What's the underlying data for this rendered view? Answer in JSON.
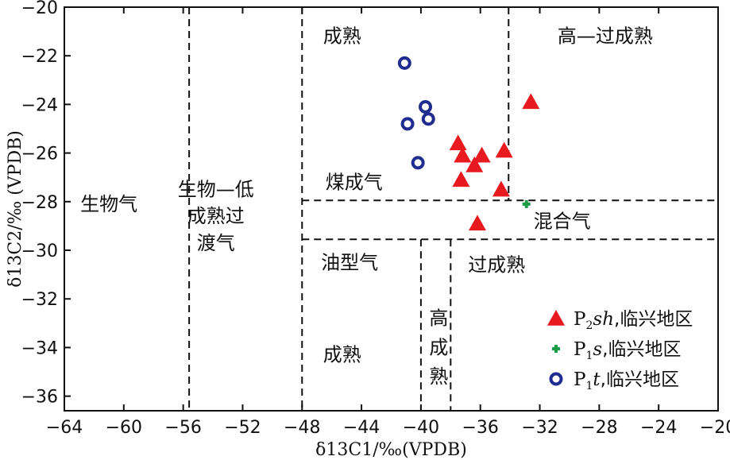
{
  "chart_data": {
    "type": "scatter",
    "title": "",
    "xlabel": "δ13C1/‰(VPDB)",
    "ylabel": "δ13C2/‰ (VPDB)",
    "xlim": [
      -64,
      -20
    ],
    "ylim": [
      -36.6,
      -20
    ],
    "x_ticks": [
      -64,
      -60,
      -56,
      -52,
      -48,
      -44,
      -40,
      -36,
      -32,
      -28,
      -24,
      -20
    ],
    "y_ticks": [
      -20,
      -22,
      -24,
      -26,
      -28,
      -30,
      -32,
      -34,
      -36
    ],
    "grid": false,
    "legend_position": "bottom-right",
    "region_labels": [
      {
        "text": "生物气",
        "x": -61,
        "y": -28.1
      },
      {
        "text": "生物—低",
        "x": -53.8,
        "y": -27.5
      },
      {
        "text": "成熟过",
        "x": -53.8,
        "y": -28.6
      },
      {
        "text": "渡气",
        "x": -53.8,
        "y": -29.7
      },
      {
        "text": "成熟",
        "x": -45.3,
        "y": -21.2
      },
      {
        "text": "高—过成熟",
        "x": -27.6,
        "y": -21.2
      },
      {
        "text": "煤成气",
        "x": -44.5,
        "y": -27.2
      },
      {
        "text": "混合气",
        "x": -30.5,
        "y": -28.8
      },
      {
        "text": "油型气",
        "x": -44.8,
        "y": -30.5
      },
      {
        "text": "过成熟",
        "x": -34.9,
        "y": -30.6
      },
      {
        "text": "成熟",
        "x": -45.3,
        "y": -34.3
      },
      {
        "text": "高",
        "x": -38.8,
        "y": -32.8
      },
      {
        "text": "成",
        "x": -38.8,
        "y": -34.0
      },
      {
        "text": "熟",
        "x": -38.8,
        "y": -35.2
      }
    ],
    "series": [
      {
        "name_prefix": "P",
        "name_sub": "2",
        "name_italic": "sh",
        "name_suffix": ",临兴地区",
        "marker": "triangle",
        "color": "#e8191f",
        "points": [
          [
            -32.6,
            -23.9
          ],
          [
            -37.5,
            -25.6
          ],
          [
            -37.2,
            -26.1
          ],
          [
            -35.9,
            -26.1
          ],
          [
            -34.4,
            -25.9
          ],
          [
            -36.4,
            -26.5
          ],
          [
            -37.3,
            -27.1
          ],
          [
            -34.6,
            -27.5
          ],
          [
            -36.2,
            -28.9
          ]
        ]
      },
      {
        "name_prefix": "P",
        "name_sub": "1",
        "name_italic": "s",
        "name_suffix": ",临兴地区",
        "marker": "plus",
        "color": "#1a9a44",
        "points": [
          [
            -32.9,
            -28.1
          ]
        ]
      },
      {
        "name_prefix": "P",
        "name_sub": "1",
        "name_italic": "t",
        "name_suffix": ",临兴地区",
        "marker": "ring",
        "color": "#1e2d8f",
        "points": [
          [
            -41.1,
            -22.3
          ],
          [
            -39.7,
            -24.1
          ],
          [
            -40.9,
            -24.8
          ],
          [
            -39.5,
            -24.6
          ],
          [
            -40.2,
            -26.4
          ]
        ]
      }
    ]
  }
}
